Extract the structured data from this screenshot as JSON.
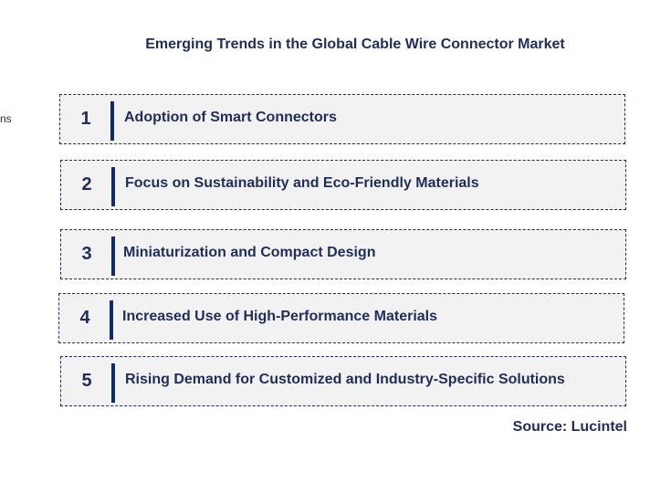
{
  "title": "Emerging Trends in the Global Cable Wire Connector Market",
  "edge_text": "ns",
  "trends": [
    {
      "number": "1",
      "label": "Adoption of Smart Connectors"
    },
    {
      "number": "2",
      "label": "Focus on Sustainability and Eco-Friendly Materials"
    },
    {
      "number": "3",
      "label": "Miniaturization and Compact Design"
    },
    {
      "number": "4",
      "label": "Increased Use of High-Performance Materials"
    },
    {
      "number": "5",
      "label": "Rising Demand for Customized and Industry-Specific Solutions"
    }
  ],
  "source": "Source: Lucintel",
  "colors": {
    "accent": "#0e2b6b",
    "text": "#1f2d5a",
    "box_fill": "#f2f2f2"
  }
}
